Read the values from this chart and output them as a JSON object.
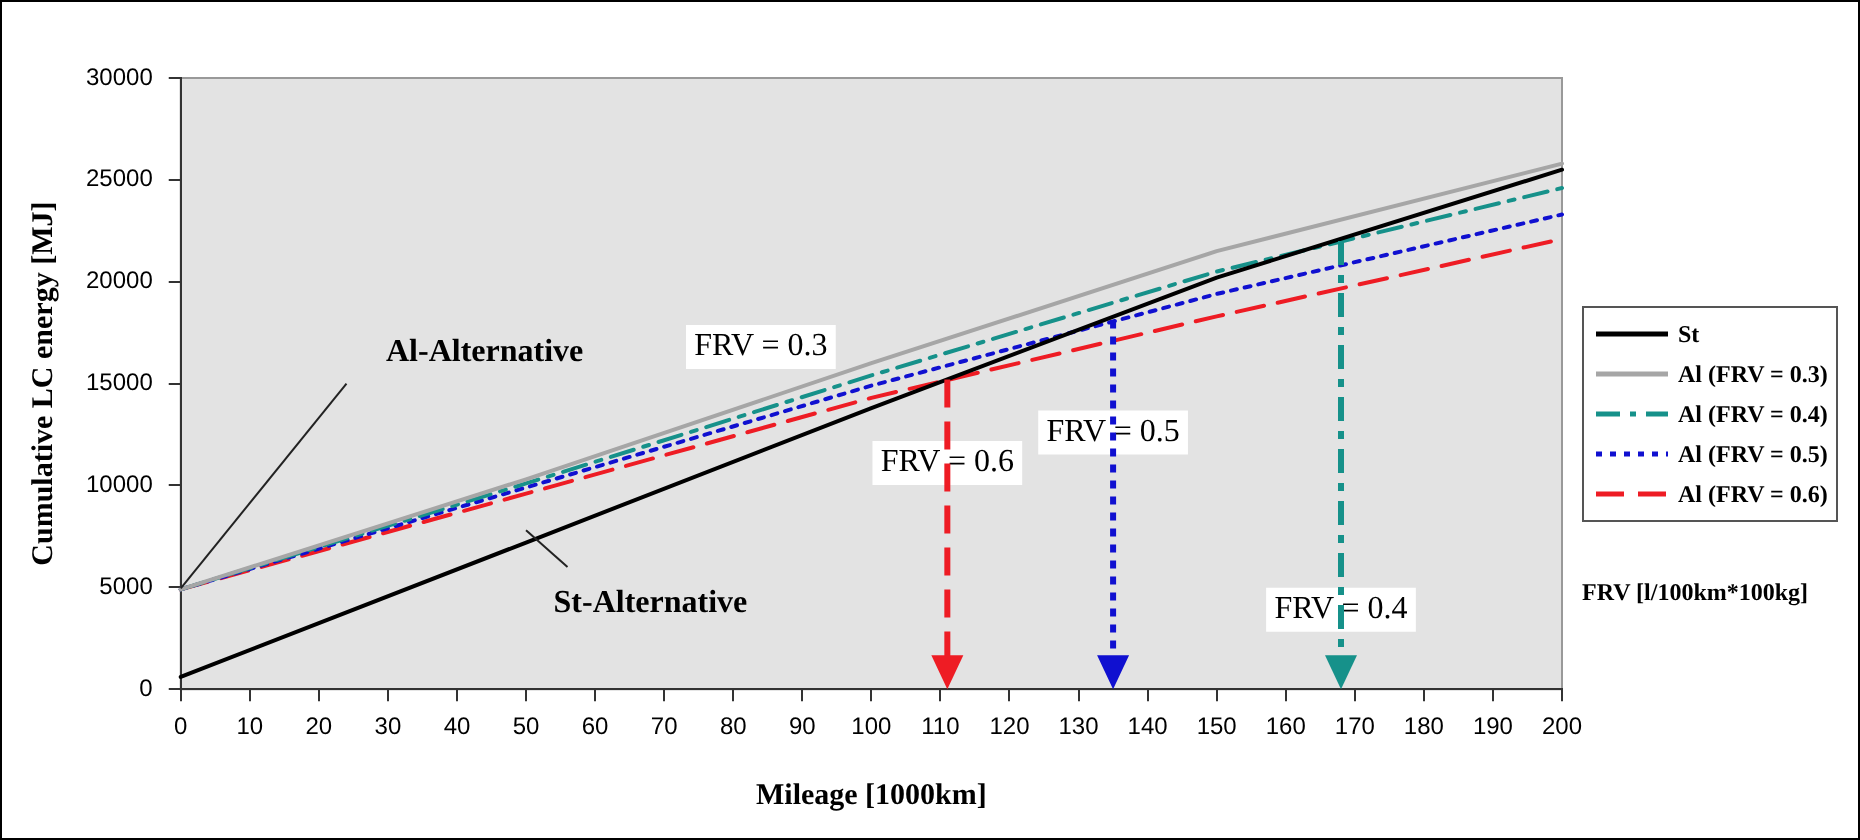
{
  "chart_data": {
    "type": "line",
    "xlabel": "Mileage [1000km]",
    "ylabel": "Cumulative LC energy [MJ]",
    "legend_title": "FRV [l/100km*100kg]",
    "x": [
      0,
      50,
      100,
      150,
      200
    ],
    "xlim": [
      0,
      200
    ],
    "xticks": [
      0,
      10,
      20,
      30,
      40,
      50,
      60,
      70,
      80,
      90,
      100,
      110,
      120,
      130,
      140,
      150,
      160,
      170,
      180,
      190,
      200
    ],
    "ylim": [
      0,
      30000
    ],
    "yticks": [
      0,
      5000,
      10000,
      15000,
      20000,
      25000,
      30000
    ],
    "grid": false,
    "legend": "right",
    "marker": "none",
    "series": [
      {
        "name": "St",
        "color": "#000000",
        "line_style": "solid",
        "values": [
          600,
          7200,
          13800,
          20200,
          25500
        ]
      },
      {
        "name": "Al (FRV = 0.3)",
        "color": "#a6a6a6",
        "line_style": "solid",
        "values": [
          4900,
          10300,
          16000,
          21500,
          25800
        ]
      },
      {
        "name": "Al (FRV = 0.4)",
        "color": "#16918a",
        "line_style": "dashdot",
        "values": [
          4900,
          10100,
          15400,
          20500,
          24600
        ]
      },
      {
        "name": "Al (FRV = 0.5)",
        "color": "#1010d0",
        "line_style": "dotted",
        "values": [
          4900,
          9900,
          14900,
          19400,
          23300
        ]
      },
      {
        "name": "Al (FRV = 0.6)",
        "color": "#ee1c24",
        "line_style": "dashed",
        "values": [
          4900,
          9600,
          14300,
          18300,
          22100
        ]
      }
    ],
    "annotations": [
      "Al-Alternative",
      "St-Alternative",
      "FRV = 0.3",
      {
        "text": "FRV = 0.6",
        "x": 111,
        "y": 15200
      },
      {
        "text": "FRV = 0.5",
        "x": 135,
        "y": 18100
      },
      {
        "text": "FRV = 0.4",
        "x": 168,
        "y": 22000
      }
    ]
  }
}
